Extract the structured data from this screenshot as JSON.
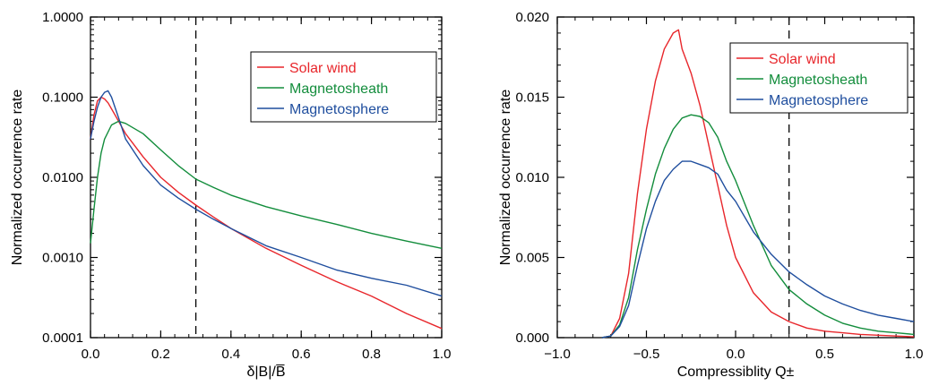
{
  "chart_data": [
    {
      "type": "line",
      "ylabel": "Normalized occurrence rate",
      "xlabel": "δ|B|/B̅",
      "xlim": [
        0.0,
        1.0
      ],
      "ylim": [
        0.0001,
        1.0
      ],
      "yscale": "log",
      "xticks": [
        0.0,
        0.2,
        0.4,
        0.6,
        0.8,
        1.0
      ],
      "xtick_labels": [
        "0.0",
        "0.2",
        "0.4",
        "0.6",
        "0.8",
        "1.0"
      ],
      "yticks": [
        0.0001,
        0.001,
        0.01,
        0.1,
        1.0
      ],
      "ytick_labels": [
        "0.0001",
        "0.0010",
        "0.0100",
        "0.1000",
        "1.0000"
      ],
      "threshold_x": 0.3,
      "legend_position": "top-right",
      "series": [
        {
          "name": "Solar wind",
          "color": "#e8262b",
          "x": [
            0.0,
            0.01,
            0.02,
            0.03,
            0.04,
            0.05,
            0.07,
            0.1,
            0.15,
            0.2,
            0.25,
            0.3,
            0.35,
            0.4,
            0.5,
            0.6,
            0.7,
            0.8,
            0.9,
            1.0
          ],
          "y": [
            0.03,
            0.06,
            0.09,
            0.1,
            0.095,
            0.085,
            0.06,
            0.035,
            0.018,
            0.01,
            0.0065,
            0.0045,
            0.0032,
            0.0023,
            0.0013,
            0.0008,
            0.0005,
            0.00033,
            0.0002,
            0.00013
          ]
        },
        {
          "name": "Magnetosheath",
          "color": "#138d3c",
          "x": [
            0.0,
            0.01,
            0.02,
            0.03,
            0.04,
            0.06,
            0.08,
            0.1,
            0.15,
            0.2,
            0.25,
            0.3,
            0.35,
            0.4,
            0.5,
            0.6,
            0.7,
            0.8,
            0.9,
            1.0
          ],
          "y": [
            0.0015,
            0.004,
            0.01,
            0.02,
            0.03,
            0.045,
            0.05,
            0.047,
            0.035,
            0.022,
            0.014,
            0.0095,
            0.0075,
            0.006,
            0.0043,
            0.0033,
            0.0026,
            0.002,
            0.0016,
            0.0013
          ]
        },
        {
          "name": "Magnetosphere",
          "color": "#1f4e9e",
          "x": [
            0.0,
            0.01,
            0.02,
            0.03,
            0.04,
            0.05,
            0.06,
            0.08,
            0.1,
            0.15,
            0.2,
            0.25,
            0.3,
            0.35,
            0.4,
            0.5,
            0.6,
            0.7,
            0.8,
            0.9,
            1.0
          ],
          "y": [
            0.03,
            0.05,
            0.075,
            0.1,
            0.115,
            0.12,
            0.1,
            0.055,
            0.03,
            0.014,
            0.008,
            0.0055,
            0.004,
            0.003,
            0.0023,
            0.0014,
            0.001,
            0.0007,
            0.00055,
            0.00045,
            0.00033
          ]
        }
      ]
    },
    {
      "type": "line",
      "ylabel": "Normalized occurrence rate",
      "xlabel": "Compressiblity Q±",
      "xlim": [
        -1.0,
        1.0
      ],
      "ylim": [
        0.0,
        0.02
      ],
      "xticks": [
        -1.0,
        -0.5,
        0.0,
        0.5,
        1.0
      ],
      "xtick_labels": [
        "−1.0",
        "−0.5",
        "0.0",
        "0.5",
        "1.0"
      ],
      "yticks": [
        0.0,
        0.005,
        0.01,
        0.015,
        0.02
      ],
      "ytick_labels": [
        "0.000",
        "0.005",
        "0.010",
        "0.015",
        "0.020"
      ],
      "threshold_x": 0.3,
      "legend_position": "top-right",
      "series": [
        {
          "name": "Solar wind",
          "color": "#e8262b",
          "x": [
            -0.75,
            -0.7,
            -0.65,
            -0.6,
            -0.55,
            -0.5,
            -0.45,
            -0.4,
            -0.35,
            -0.32,
            -0.3,
            -0.25,
            -0.2,
            -0.15,
            -0.1,
            -0.05,
            0.0,
            0.1,
            0.2,
            0.3,
            0.4,
            0.5,
            0.6,
            0.7,
            0.8,
            0.9,
            1.0
          ],
          "y": [
            0.0,
            0.0001,
            0.0012,
            0.004,
            0.009,
            0.013,
            0.016,
            0.018,
            0.019,
            0.0192,
            0.018,
            0.0165,
            0.0145,
            0.012,
            0.0095,
            0.007,
            0.005,
            0.0028,
            0.0016,
            0.001,
            0.0006,
            0.0004,
            0.0003,
            0.0002,
            0.00015,
            0.0001,
            5e-05
          ]
        },
        {
          "name": "Magnetosheath",
          "color": "#138d3c",
          "x": [
            -0.75,
            -0.7,
            -0.65,
            -0.6,
            -0.55,
            -0.5,
            -0.45,
            -0.4,
            -0.35,
            -0.3,
            -0.25,
            -0.2,
            -0.15,
            -0.1,
            -0.05,
            0.0,
            0.1,
            0.2,
            0.3,
            0.4,
            0.5,
            0.6,
            0.7,
            0.8,
            0.9,
            1.0
          ],
          "y": [
            0.0,
            0.0001,
            0.0008,
            0.0025,
            0.0055,
            0.008,
            0.0102,
            0.0118,
            0.013,
            0.0137,
            0.0139,
            0.0138,
            0.0134,
            0.0125,
            0.011,
            0.0098,
            0.007,
            0.0045,
            0.003,
            0.0021,
            0.0014,
            0.0009,
            0.0006,
            0.0004,
            0.0003,
            0.0002
          ]
        },
        {
          "name": "Magnetosphere",
          "color": "#1f4e9e",
          "x": [
            -0.75,
            -0.7,
            -0.65,
            -0.6,
            -0.55,
            -0.5,
            -0.45,
            -0.4,
            -0.35,
            -0.3,
            -0.25,
            -0.2,
            -0.15,
            -0.1,
            -0.05,
            0.0,
            0.1,
            0.2,
            0.3,
            0.4,
            0.5,
            0.6,
            0.7,
            0.8,
            0.9,
            1.0
          ],
          "y": [
            0.0,
            0.0001,
            0.0007,
            0.002,
            0.0045,
            0.0068,
            0.0085,
            0.0098,
            0.0105,
            0.011,
            0.011,
            0.0108,
            0.0106,
            0.0102,
            0.0092,
            0.0085,
            0.0066,
            0.0052,
            0.0041,
            0.0033,
            0.0026,
            0.0021,
            0.0017,
            0.0014,
            0.0012,
            0.001
          ]
        }
      ]
    }
  ]
}
